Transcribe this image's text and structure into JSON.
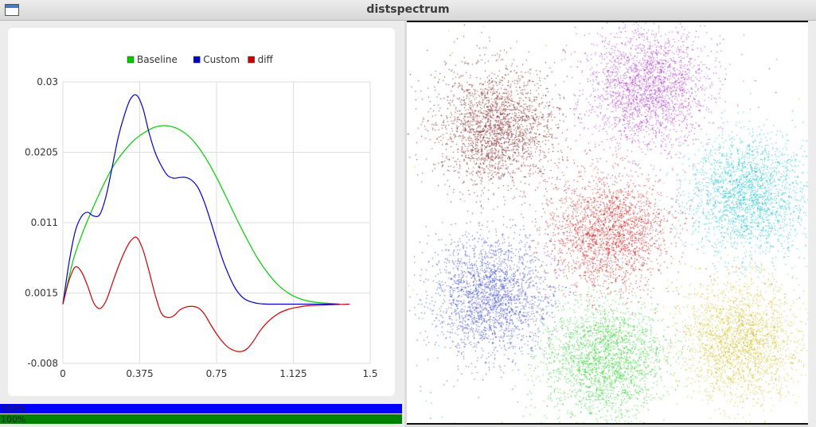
{
  "window": {
    "title": "distspectrum"
  },
  "chart_data": {
    "type": "line",
    "legend": {
      "position": "top"
    },
    "xlim": [
      0,
      1.5
    ],
    "ylim": [
      -0.008,
      0.03
    ],
    "x_ticks": [
      "0",
      "0.375",
      "0.75",
      "1.125",
      "1.5"
    ],
    "y_ticks": [
      "0.03",
      "0.0205",
      "0.011",
      "0.0015",
      "-0.008"
    ],
    "grid": true,
    "series": [
      {
        "name": "Baseline",
        "color": "#00cc00",
        "x": [
          0,
          0.05,
          0.1,
          0.15,
          0.2,
          0.25,
          0.3,
          0.35,
          0.4,
          0.45,
          0.5,
          0.55,
          0.6,
          0.65,
          0.7,
          0.75,
          0.8,
          0.85,
          0.9,
          0.95,
          1.0,
          1.05,
          1.1,
          1.15,
          1.2,
          1.25,
          1.3,
          1.35
        ],
        "y": [
          0,
          0.0059,
          0.0099,
          0.0132,
          0.0162,
          0.0188,
          0.0207,
          0.0222,
          0.0232,
          0.0239,
          0.0241,
          0.0238,
          0.023,
          0.0216,
          0.0196,
          0.0171,
          0.0143,
          0.0114,
          0.0087,
          0.0062,
          0.0042,
          0.0026,
          0.0015,
          0.0008,
          0.0004,
          0.0002,
          0.0001,
          0
        ]
      },
      {
        "name": "Custom",
        "color": "#0000cc",
        "x": [
          0,
          0.03,
          0.06,
          0.09,
          0.12,
          0.15,
          0.18,
          0.21,
          0.24,
          0.27,
          0.3,
          0.33,
          0.36,
          0.39,
          0.42,
          0.45,
          0.48,
          0.51,
          0.54,
          0.57,
          0.6,
          0.63,
          0.66,
          0.69,
          0.72,
          0.75,
          0.78,
          0.81,
          0.84,
          0.87,
          0.9,
          0.95,
          1.0,
          1.05,
          1.1,
          1.2,
          1.35
        ],
        "y": [
          0,
          0.0056,
          0.0098,
          0.0118,
          0.0124,
          0.0119,
          0.0121,
          0.0145,
          0.0184,
          0.0225,
          0.0255,
          0.0277,
          0.0282,
          0.0265,
          0.0232,
          0.0205,
          0.0187,
          0.0174,
          0.017,
          0.0171,
          0.0171,
          0.0167,
          0.0157,
          0.0138,
          0.0113,
          0.0086,
          0.006,
          0.0039,
          0.0022,
          0.0011,
          0.0005,
          0.0001,
          0,
          0,
          0,
          0,
          0
        ]
      },
      {
        "name": "diff",
        "color": "#cc0000",
        "x": [
          0,
          0.03,
          0.06,
          0.09,
          0.12,
          0.15,
          0.18,
          0.21,
          0.24,
          0.27,
          0.3,
          0.33,
          0.36,
          0.39,
          0.42,
          0.45,
          0.48,
          0.51,
          0.54,
          0.57,
          0.6,
          0.63,
          0.66,
          0.69,
          0.72,
          0.75,
          0.78,
          0.81,
          0.84,
          0.87,
          0.9,
          0.93,
          0.96,
          1.0,
          1.05,
          1.1,
          1.15,
          1.2,
          1.3,
          1.4
        ],
        "y": [
          0,
          0.0032,
          0.005,
          0.0044,
          0.0025,
          0.0002,
          -0.0006,
          0.0004,
          0.0027,
          0.005,
          0.007,
          0.0085,
          0.009,
          0.0074,
          0.0045,
          0.0013,
          -0.0012,
          -0.0018,
          -0.0016,
          -0.0008,
          -0.0004,
          -0.0003,
          -0.0005,
          -0.0013,
          -0.0027,
          -0.004,
          -0.0051,
          -0.0059,
          -0.0063,
          -0.0064,
          -0.006,
          -0.005,
          -0.0037,
          -0.0024,
          -0.0013,
          -0.0007,
          -0.0004,
          -0.0002,
          -0.0001,
          0
        ]
      }
    ]
  },
  "scatter": {
    "clusters": [
      {
        "color": "#6b0000",
        "center": [
          0.22,
          0.26
        ],
        "count": 2200
      },
      {
        "color": "#a020c0",
        "center": [
          0.6,
          0.16
        ],
        "count": 2200
      },
      {
        "color": "#00b8c8",
        "center": [
          0.85,
          0.43
        ],
        "count": 2200
      },
      {
        "color": "#c00000",
        "center": [
          0.5,
          0.52
        ],
        "count": 2200
      },
      {
        "color": "#2030c0",
        "center": [
          0.21,
          0.68
        ],
        "count": 2200
      },
      {
        "color": "#10cc10",
        "center": [
          0.49,
          0.84
        ],
        "count": 2200
      },
      {
        "color": "#c8b400",
        "center": [
          0.83,
          0.79
        ],
        "count": 2200
      }
    ],
    "noise_count": 160
  },
  "progress": [
    {
      "label": "100%",
      "value": 1.0,
      "color": "#0000ff"
    },
    {
      "label": "100%",
      "value": 1.0,
      "color": "#008000"
    }
  ]
}
